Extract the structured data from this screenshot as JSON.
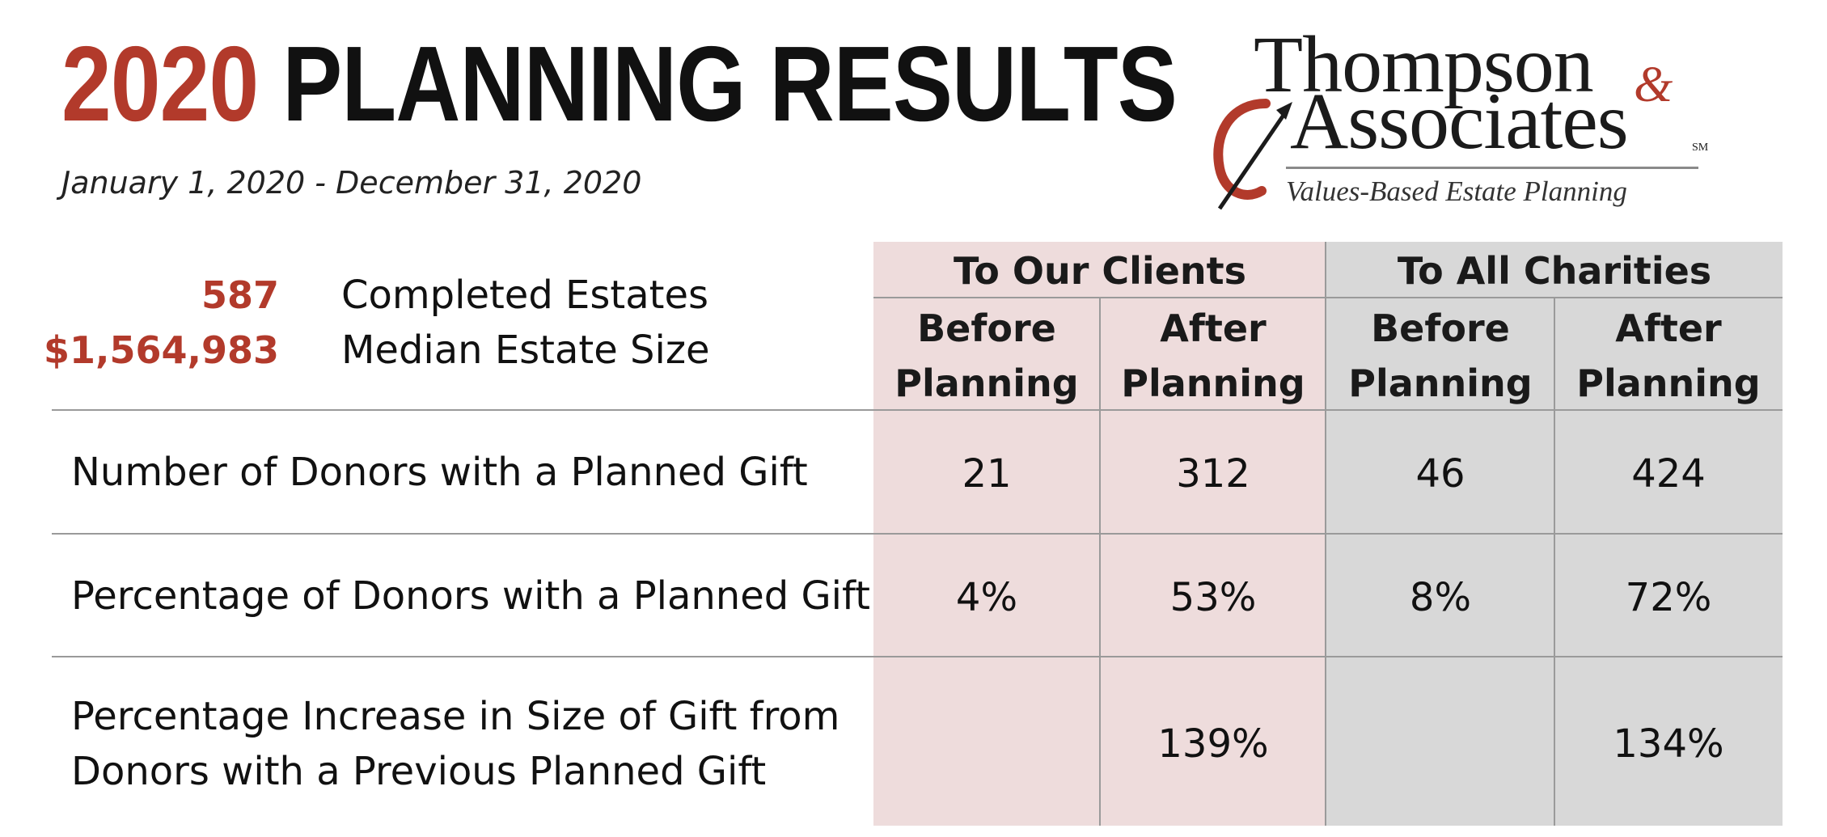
{
  "header": {
    "title_year": "2020",
    "title_rest": "PLANNING RESULTS",
    "date_range": "January 1, 2020 - December 31, 2020"
  },
  "logo": {
    "line1": "Thompson",
    "ampersand": "&",
    "line2": "Associates",
    "sm": "SM",
    "tagline": "Values-Based Estate Planning"
  },
  "summary": [
    {
      "value": "587",
      "label": "Completed Estates"
    },
    {
      "value": "$1,564,983",
      "label": "Median Estate Size"
    }
  ],
  "table": {
    "groups": [
      {
        "label": "To Our Clients",
        "color": "#eedcdc"
      },
      {
        "label": "To All Charities",
        "color": "#d8d8d8"
      }
    ],
    "subheaders": [
      [
        "Before",
        "Planning"
      ],
      [
        "After",
        "Planning"
      ],
      [
        "Before",
        "Planning"
      ],
      [
        "After",
        "Planning"
      ]
    ],
    "rows": [
      {
        "label": [
          "Number of Donors with a Planned Gift"
        ],
        "values": [
          "21",
          "312",
          "46",
          "424"
        ]
      },
      {
        "label": [
          "Percentage of Donors with a Planned Gift"
        ],
        "values": [
          "4%",
          "53%",
          "8%",
          "72%"
        ]
      },
      {
        "label": [
          "Percentage Increase in Size of Gift from",
          "Donors with a Previous Planned Gift"
        ],
        "values": [
          "",
          "139%",
          "",
          "134%"
        ]
      }
    ]
  },
  "colors": {
    "accent": "#b23a2b",
    "client_panel": "#eedcdc",
    "charity_panel": "#d8d8d8"
  }
}
